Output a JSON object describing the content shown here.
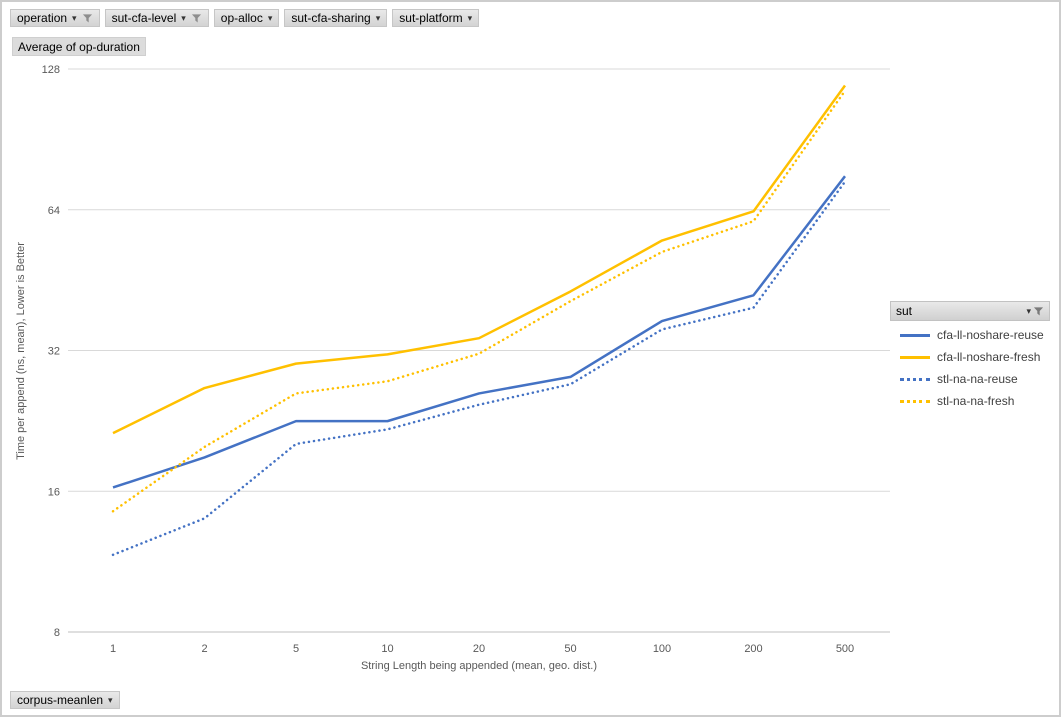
{
  "top_filter_buttons": [
    {
      "label": "operation",
      "filtered": true
    },
    {
      "label": "sut-cfa-level",
      "filtered": true
    },
    {
      "label": "op-alloc",
      "filtered": false
    },
    {
      "label": "sut-cfa-sharing",
      "filtered": false
    },
    {
      "label": "sut-platform",
      "filtered": false
    }
  ],
  "value_field_button": "Average of op-duration",
  "axis_field_button": "corpus-meanlen",
  "legend": {
    "field_label": "sut"
  },
  "colors": {
    "series_blue": "#4472C4",
    "series_gold": "#FFC000",
    "gridline": "#D9D9D9",
    "axis_text": "#595959"
  },
  "chart_data": {
    "type": "line",
    "title": "",
    "xlabel": "String Length  being appended (mean, geo. dist.)",
    "ylabel": "Time per append (ns, mean),  Lower is Better",
    "categories": [
      "1",
      "2",
      "5",
      "10",
      "20",
      "50",
      "100",
      "200",
      "500"
    ],
    "y_scale": "log2",
    "ylim": [
      8,
      128
    ],
    "yticks": [
      128,
      64,
      32,
      16,
      8
    ],
    "grid": "horizontal",
    "legend_position": "right",
    "series": [
      {
        "name": "cfa-ll-noshare-reuse",
        "color": "#4472C4",
        "line_style": "solid",
        "values": [
          16.3,
          18.9,
          22.6,
          22.6,
          25.9,
          28.1,
          37,
          42,
          75.5
        ]
      },
      {
        "name": "cfa-ll-noshare-fresh",
        "color": "#FFC000",
        "line_style": "solid",
        "values": [
          21.3,
          26.6,
          30,
          31.4,
          34,
          42.8,
          55,
          63.5,
          118
        ]
      },
      {
        "name": "stl-na-na-reuse",
        "color": "#4472C4",
        "line_style": "dotted",
        "values": [
          11.7,
          14,
          20.2,
          21.7,
          24.5,
          27.1,
          35.5,
          39.5,
          73.5
        ]
      },
      {
        "name": "stl-na-na-fresh",
        "color": "#FFC000",
        "line_style": "dotted",
        "values": [
          14.5,
          19.9,
          25.9,
          27.5,
          31.5,
          40.8,
          52,
          60.5,
          115
        ]
      }
    ]
  }
}
